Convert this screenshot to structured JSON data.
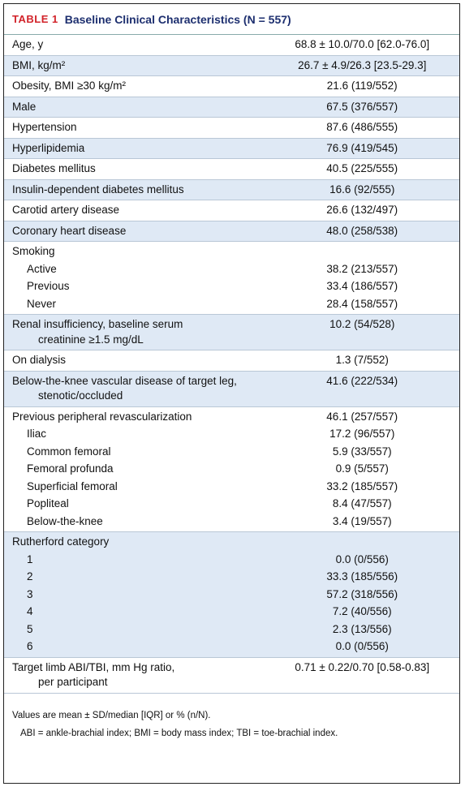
{
  "table": {
    "tag": "TABLE 1",
    "title": "Baseline Clinical Characteristics (N = 557)",
    "rows": [
      {
        "label": "Age, y",
        "value": "68.8 ± 10.0/70.0 [62.0-76.0]"
      },
      {
        "label": "BMI, kg/m²",
        "value": "26.7 ± 4.9/26.3 [23.5-29.3]"
      },
      {
        "label": "Obesity, BMI ≥30 kg/m²",
        "value": "21.6 (119/552)"
      },
      {
        "label": "Male",
        "value": "67.5 (376/557)"
      },
      {
        "label": "Hypertension",
        "value": "87.6 (486/555)"
      },
      {
        "label": "Hyperlipidemia",
        "value": "76.9 (419/545)"
      },
      {
        "label": "Diabetes mellitus",
        "value": "40.5 (225/555)"
      },
      {
        "label": "Insulin-dependent diabetes mellitus",
        "value": "16.6 (92/555)"
      },
      {
        "label": "Carotid artery disease",
        "value": "26.6 (132/497)"
      },
      {
        "label": "Coronary heart disease",
        "value": "48.0 (258/538)"
      },
      {
        "label": "Smoking",
        "items": [
          {
            "label": "Active",
            "value": "38.2 (213/557)"
          },
          {
            "label": "Previous",
            "value": "33.4 (186/557)"
          },
          {
            "label": "Never",
            "value": "28.4 (158/557)"
          }
        ]
      },
      {
        "label": [
          "Renal insufficiency, baseline serum",
          "creatinine ≥1.5 mg/dL"
        ],
        "value": "10.2 (54/528)"
      },
      {
        "label": "On dialysis",
        "value": "1.3 (7/552)"
      },
      {
        "label": [
          "Below-the-knee vascular disease of target leg,",
          "stenotic/occluded"
        ],
        "value": "41.6 (222/534)"
      },
      {
        "label": "Previous peripheral revascularization",
        "value": "46.1 (257/557)",
        "items": [
          {
            "label": "Iliac",
            "value": "17.2 (96/557)"
          },
          {
            "label": "Common femoral",
            "value": "5.9 (33/557)"
          },
          {
            "label": "Femoral profunda",
            "value": "0.9 (5/557)"
          },
          {
            "label": "Superficial femoral",
            "value": "33.2 (185/557)"
          },
          {
            "label": "Popliteal",
            "value": "8.4 (47/557)"
          },
          {
            "label": "Below-the-knee",
            "value": "3.4 (19/557)"
          }
        ]
      },
      {
        "label": "Rutherford category",
        "items": [
          {
            "label": "1",
            "value": "0.0 (0/556)"
          },
          {
            "label": "2",
            "value": "33.3 (185/556)"
          },
          {
            "label": "3",
            "value": "57.2 (318/556)"
          },
          {
            "label": "4",
            "value": "7.2 (40/556)"
          },
          {
            "label": "5",
            "value": "2.3 (13/556)"
          },
          {
            "label": "6",
            "value": "0.0 (0/556)"
          }
        ]
      },
      {
        "label": [
          "Target limb ABI/TBI, mm Hg ratio,",
          "per participant"
        ],
        "value": "0.71 ± 0.22/0.70 [0.58-0.83]"
      }
    ],
    "notes": [
      "Values are mean ± SD/median [IQR] or % (n/N).",
      "ABI = ankle-brachial index; BMI = body mass index; TBI = toe-brachial index."
    ]
  }
}
